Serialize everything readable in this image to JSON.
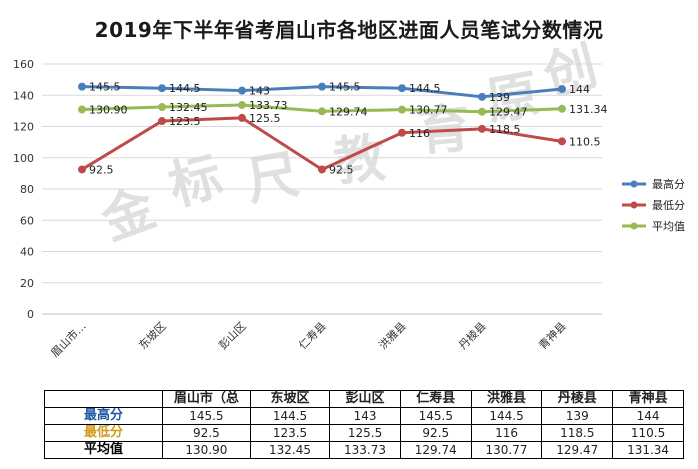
{
  "title": "2019年下半年省考眉山市各地区进面人员笔试分数情况",
  "watermark": "金标尺教育原创",
  "colors": {
    "max": "#4a7ebb",
    "min": "#be4b48",
    "avg": "#98b954",
    "grid": "#d9d9d9"
  },
  "chart_data": {
    "type": "line",
    "categories": [
      "眉山市…",
      "东坡区",
      "彭山区",
      "仁寿县",
      "洪雅县",
      "丹棱县",
      "青神县"
    ],
    "ylim": [
      0,
      160
    ],
    "yticks": [
      0,
      20,
      40,
      60,
      80,
      100,
      120,
      140,
      160
    ],
    "legend_position": "right",
    "grid": "horizontal",
    "series": [
      {
        "key": "max",
        "name": "最高分",
        "values": [
          145.5,
          144.5,
          143,
          145.5,
          144.5,
          139,
          144
        ],
        "labels": [
          "145.5",
          "144.5",
          "143",
          "145.5",
          "144.5",
          "139",
          "144"
        ]
      },
      {
        "key": "min",
        "name": "最低分",
        "values": [
          92.5,
          123.5,
          125.5,
          92.5,
          116,
          118.5,
          110.5
        ],
        "labels": [
          "92.5",
          "123.5",
          "125.5",
          "92.5",
          "116",
          "118.5",
          "110.5"
        ]
      },
      {
        "key": "avg",
        "name": "平均值",
        "values": [
          130.9,
          132.45,
          133.73,
          129.74,
          130.77,
          129.47,
          131.34
        ],
        "labels": [
          "130.90",
          "132.45",
          "133.73",
          "129.74",
          "130.77",
          "129.47",
          "131.34"
        ]
      }
    ]
  },
  "table": {
    "headers": [
      "",
      "眉山市（总",
      "东坡区",
      "彭山区",
      "仁寿县",
      "洪雅县",
      "丹棱县",
      "青神县"
    ],
    "rows": [
      {
        "key": "max",
        "label": "最高分",
        "values": [
          "145.5",
          "144.5",
          "143",
          "145.5",
          "144.5",
          "139",
          "144"
        ]
      },
      {
        "key": "min",
        "label": "最低分",
        "values": [
          "92.5",
          "123.5",
          "125.5",
          "92.5",
          "116",
          "118.5",
          "110.5"
        ]
      },
      {
        "key": "avg",
        "label": "平均值",
        "values": [
          "130.90",
          "132.45",
          "133.73",
          "129.74",
          "130.77",
          "129.47",
          "131.34"
        ]
      }
    ]
  }
}
